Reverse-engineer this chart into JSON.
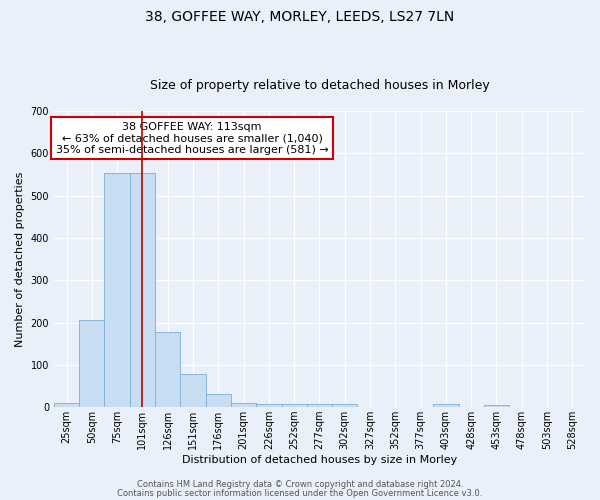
{
  "title": "38, GOFFEE WAY, MORLEY, LEEDS, LS27 7LN",
  "subtitle": "Size of property relative to detached houses in Morley",
  "xlabel": "Distribution of detached houses by size in Morley",
  "ylabel": "Number of detached properties",
  "bin_labels": [
    "25sqm",
    "50sqm",
    "75sqm",
    "101sqm",
    "126sqm",
    "151sqm",
    "176sqm",
    "201sqm",
    "226sqm",
    "252sqm",
    "277sqm",
    "302sqm",
    "327sqm",
    "352sqm",
    "377sqm",
    "403sqm",
    "428sqm",
    "453sqm",
    "478sqm",
    "503sqm",
    "528sqm"
  ],
  "bin_edges": [
    0,
    1,
    2,
    3,
    4,
    5,
    6,
    7,
    8,
    9,
    10,
    11,
    12,
    13,
    14,
    15,
    16,
    17,
    18,
    19,
    20,
    21
  ],
  "bar_heights": [
    10,
    205,
    553,
    553,
    178,
    78,
    30,
    10,
    7,
    7,
    7,
    7,
    0,
    0,
    0,
    7,
    0,
    5,
    0,
    0,
    0
  ],
  "bar_color": "#c8ddf2",
  "bar_edgecolor": "#7ab0d4",
  "vline_bin": 3.5,
  "vline_color": "#bb0000",
  "annotation_title": "38 GOFFEE WAY: 113sqm",
  "annotation_line1": "← 63% of detached houses are smaller (1,040)",
  "annotation_line2": "35% of semi-detached houses are larger (581) →",
  "annotation_box_facecolor": "#ffffff",
  "annotation_box_edgecolor": "#cc0000",
  "ylim": [
    0,
    700
  ],
  "yticks": [
    0,
    100,
    200,
    300,
    400,
    500,
    600,
    700
  ],
  "footer1": "Contains HM Land Registry data © Crown copyright and database right 2024.",
  "footer2": "Contains public sector information licensed under the Open Government Licence v3.0.",
  "bg_color": "#eaf0f9",
  "grid_color": "#ffffff",
  "title_fontsize": 10,
  "subtitle_fontsize": 9,
  "ylabel_fontsize": 8,
  "xlabel_fontsize": 8,
  "tick_fontsize": 7,
  "ann_fontsize": 8,
  "footer_fontsize": 6
}
